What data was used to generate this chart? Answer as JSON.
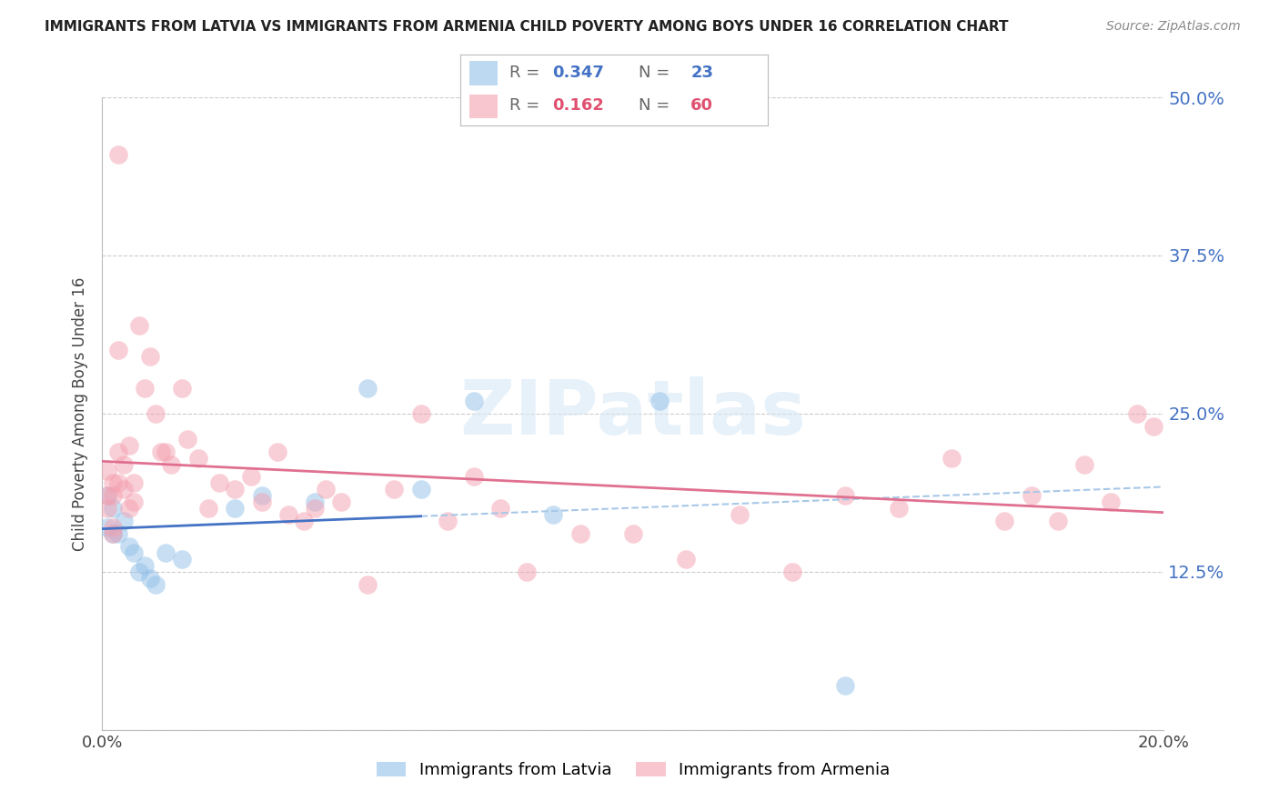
{
  "title": "IMMIGRANTS FROM LATVIA VS IMMIGRANTS FROM ARMENIA CHILD POVERTY AMONG BOYS UNDER 16 CORRELATION CHART",
  "source": "Source: ZipAtlas.com",
  "ylabel": "Child Poverty Among Boys Under 16",
  "xlim": [
    0.0,
    0.2
  ],
  "ylim": [
    0.0,
    0.5
  ],
  "watermark": "ZIPatlas",
  "latvia_R": 0.347,
  "latvia_N": 23,
  "armenia_R": 0.162,
  "armenia_N": 60,
  "latvia_color": "#92C0E8",
  "armenia_color": "#F4A0B0",
  "latvia_line_color": "#4472C4",
  "armenia_line_color": "#E07090",
  "dashed_line_color": "#A8C8E8",
  "latvia_x": [
    0.001,
    0.001,
    0.002,
    0.002,
    0.003,
    0.004,
    0.005,
    0.006,
    0.007,
    0.008,
    0.009,
    0.01,
    0.012,
    0.015,
    0.025,
    0.03,
    0.04,
    0.05,
    0.06,
    0.07,
    0.085,
    0.105,
    0.14
  ],
  "latvia_y": [
    0.185,
    0.16,
    0.175,
    0.155,
    0.155,
    0.165,
    0.145,
    0.14,
    0.125,
    0.13,
    0.12,
    0.115,
    0.14,
    0.135,
    0.175,
    0.185,
    0.18,
    0.27,
    0.19,
    0.26,
    0.17,
    0.26,
    0.035
  ],
  "armenia_x": [
    0.001,
    0.001,
    0.001,
    0.002,
    0.002,
    0.002,
    0.002,
    0.003,
    0.003,
    0.003,
    0.003,
    0.004,
    0.004,
    0.005,
    0.005,
    0.006,
    0.006,
    0.007,
    0.008,
    0.009,
    0.01,
    0.011,
    0.012,
    0.013,
    0.015,
    0.016,
    0.018,
    0.02,
    0.022,
    0.025,
    0.028,
    0.03,
    0.033,
    0.035,
    0.038,
    0.04,
    0.042,
    0.045,
    0.05,
    0.055,
    0.06,
    0.065,
    0.07,
    0.075,
    0.08,
    0.09,
    0.1,
    0.11,
    0.12,
    0.13,
    0.14,
    0.15,
    0.16,
    0.17,
    0.175,
    0.18,
    0.185,
    0.19,
    0.195,
    0.198
  ],
  "armenia_y": [
    0.205,
    0.185,
    0.175,
    0.195,
    0.185,
    0.16,
    0.155,
    0.455,
    0.3,
    0.22,
    0.195,
    0.21,
    0.19,
    0.225,
    0.175,
    0.195,
    0.18,
    0.32,
    0.27,
    0.295,
    0.25,
    0.22,
    0.22,
    0.21,
    0.27,
    0.23,
    0.215,
    0.175,
    0.195,
    0.19,
    0.2,
    0.18,
    0.22,
    0.17,
    0.165,
    0.175,
    0.19,
    0.18,
    0.115,
    0.19,
    0.25,
    0.165,
    0.2,
    0.175,
    0.125,
    0.155,
    0.155,
    0.135,
    0.17,
    0.125,
    0.185,
    0.175,
    0.215,
    0.165,
    0.185,
    0.165,
    0.21,
    0.18,
    0.25,
    0.24
  ]
}
